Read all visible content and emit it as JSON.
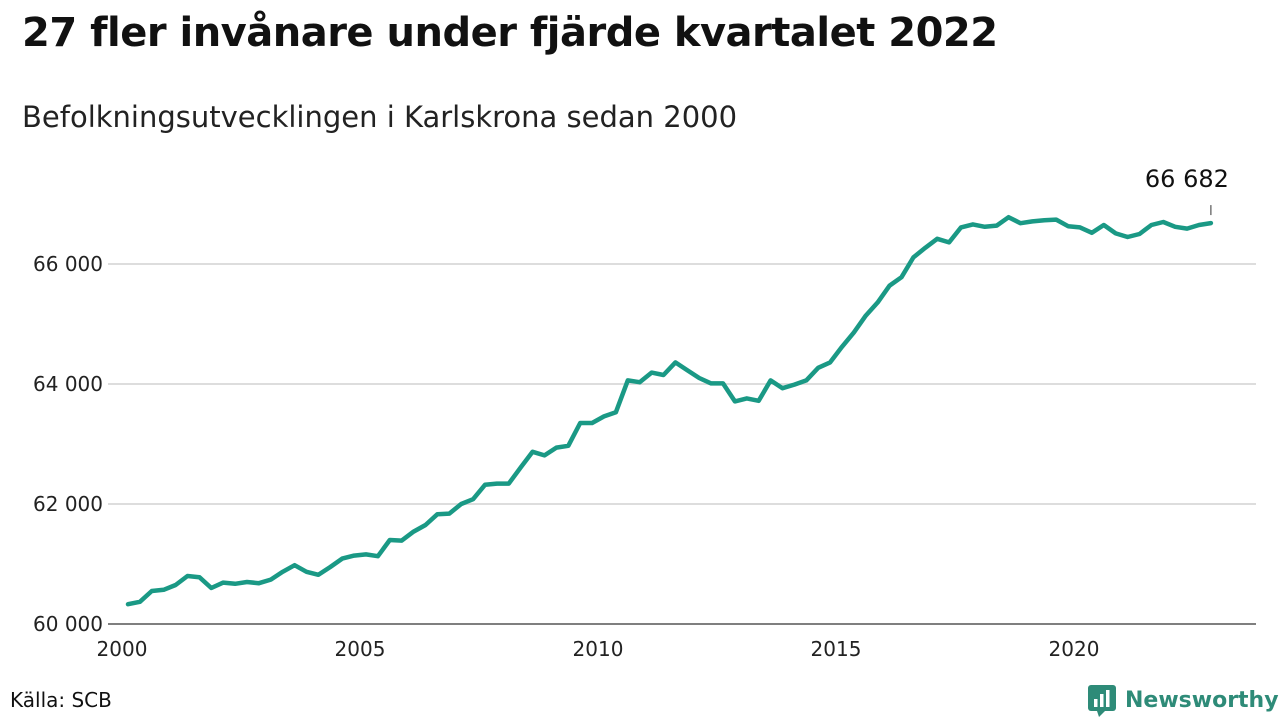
{
  "title": "27 fler invånare under fjärde kvartalet 2022",
  "subtitle": "Befolkningsutvecklingen i Karlskrona sedan 2000",
  "source": "Källa: SCB",
  "brand": {
    "name": "Newsworthy",
    "logo_icon": "newsworthy-logo-icon",
    "color": "#2e8b78"
  },
  "chart_data": {
    "type": "line",
    "line_color": "#1a9985",
    "grid": true,
    "x_ticks": [
      "2000",
      "2005",
      "2010",
      "2015",
      "2020"
    ],
    "y_ticks": [
      "60 000",
      "62 000",
      "64 000",
      "66 000"
    ],
    "xlim": [
      2000.0,
      2023.5
    ],
    "ylim": [
      60000,
      67200
    ],
    "end_label": "66 682",
    "series": [
      {
        "x": [
          2000.0,
          2000.25,
          2000.5,
          2000.75,
          2001.0,
          2001.25,
          2001.5,
          2001.75,
          2002.0,
          2002.25,
          2002.5,
          2002.75,
          2003.0,
          2003.25,
          2003.5,
          2003.75,
          2004.0,
          2004.25,
          2004.5,
          2004.75,
          2005.0,
          2005.25,
          2005.5,
          2005.75,
          2006.0,
          2006.25,
          2006.5,
          2006.75,
          2007.0,
          2007.25,
          2007.5,
          2007.75,
          2008.0,
          2008.25,
          2008.5,
          2008.75,
          2009.0,
          2009.25,
          2009.5,
          2009.75,
          2010.0,
          2010.25,
          2010.5,
          2010.75,
          2011.0,
          2011.25,
          2011.5,
          2011.75,
          2012.0,
          2012.25,
          2012.5,
          2012.75,
          2013.0,
          2013.25,
          2013.5,
          2013.75,
          2014.0,
          2014.25,
          2014.5,
          2014.75,
          2015.0,
          2015.25,
          2015.5,
          2015.75,
          2016.0,
          2016.25,
          2016.5,
          2016.75,
          2017.0,
          2017.25,
          2017.5,
          2017.75,
          2018.0,
          2018.25,
          2018.5,
          2018.75,
          2019.0,
          2019.25,
          2019.5,
          2019.75,
          2020.0,
          2020.25,
          2020.5,
          2020.75,
          2021.0,
          2021.25,
          2021.5,
          2021.75,
          2022.0,
          2022.25,
          2022.5,
          2022.75
        ],
        "y": [
          60330,
          60370,
          60550,
          60570,
          60650,
          60800,
          60780,
          60600,
          60690,
          60670,
          60700,
          60680,
          60740,
          60870,
          60980,
          60870,
          60820,
          60950,
          61090,
          61140,
          61160,
          61130,
          61400,
          61390,
          61540,
          61650,
          61830,
          61840,
          62000,
          62080,
          62320,
          62340,
          62340,
          62610,
          62870,
          62810,
          62940,
          62970,
          63350,
          63350,
          63460,
          63530,
          64060,
          64030,
          64190,
          64150,
          64360,
          64230,
          64100,
          64010,
          64010,
          63710,
          63760,
          63720,
          64060,
          63930,
          63990,
          64060,
          64270,
          64360,
          64620,
          64860,
          65140,
          65360,
          65640,
          65780,
          66110,
          66270,
          66420,
          66360,
          66610,
          66660,
          66620,
          66640,
          66780,
          66680,
          66710,
          66730,
          66740,
          66630,
          66610,
          66520,
          66650,
          66510,
          66450,
          66500,
          66650,
          66700,
          66620,
          66590,
          66650,
          66682
        ]
      }
    ]
  }
}
